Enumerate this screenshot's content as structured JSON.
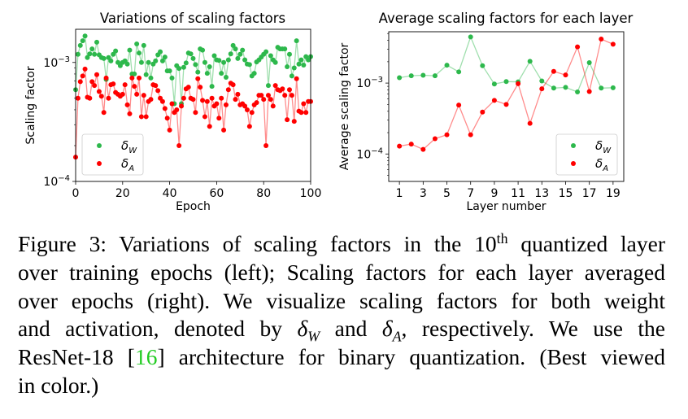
{
  "colors": {
    "delta_w": "#2db84c",
    "delta_a": "#ff0000",
    "citation": "#22cc22"
  },
  "chart_data": [
    {
      "type": "line",
      "title": "Variations of scaling factors",
      "xlabel": "Epoch",
      "ylabel": "Scaling factor",
      "yscale": "log",
      "xlim": [
        0,
        100
      ],
      "ylim": [
        0.0001,
        0.0019
      ],
      "xticks": [
        0,
        20,
        40,
        60,
        80,
        100
      ],
      "yticks": [
        {
          "value": 0.001,
          "base": "10",
          "exp": "−3"
        },
        {
          "value": 0.0001,
          "base": "10",
          "exp": "−4"
        }
      ],
      "grid": false,
      "legend_position": "lower-left",
      "x": [
        0,
        1,
        2,
        3,
        4,
        5,
        6,
        7,
        8,
        9,
        10,
        11,
        12,
        13,
        14,
        15,
        16,
        17,
        18,
        19,
        20,
        21,
        22,
        23,
        24,
        25,
        26,
        27,
        28,
        29,
        30,
        31,
        32,
        33,
        34,
        35,
        36,
        37,
        38,
        39,
        40,
        41,
        42,
        43,
        44,
        45,
        46,
        47,
        48,
        49,
        50,
        51,
        52,
        53,
        54,
        55,
        56,
        57,
        58,
        59,
        60,
        61,
        62,
        63,
        64,
        65,
        66,
        67,
        68,
        69,
        70,
        71,
        72,
        73,
        74,
        75,
        76,
        77,
        78,
        79,
        80,
        81,
        82,
        83,
        84,
        85,
        86,
        87,
        88,
        89,
        90,
        91,
        92,
        93,
        94,
        95,
        96,
        97,
        98,
        99,
        100
      ],
      "series": [
        {
          "name": "δW",
          "name_base": "δ",
          "name_sub": "W",
          "color_key": "delta_w",
          "values_e3": [
            0.59,
            1.17,
            1.39,
            1.52,
            1.67,
            1.1,
            1.18,
            1.3,
            1.17,
            1.48,
            1.16,
            1.1,
            1.08,
            0.72,
            1.1,
            1.03,
            1.17,
            1.25,
            1.0,
            0.94,
            1.0,
            1.03,
            0.97,
            1.27,
            0.8,
            0.8,
            1.43,
            1.2,
            1.0,
            1.39,
            0.79,
            1.0,
            0.74,
            0.97,
            1.03,
            1.16,
            1.23,
            1.03,
            1.11,
            0.85,
            0.85,
            0.74,
            0.45,
            0.94,
            0.89,
            0.45,
            0.91,
            0.99,
            1.2,
            1.18,
            1.08,
            0.96,
            0.83,
            1.3,
            1.27,
            1.0,
            0.81,
            0.92,
            0.63,
            1.14,
            1.05,
            1.04,
            0.81,
            1.0,
            0.75,
            1.05,
            1.18,
            1.39,
            1.3,
            1.08,
            1.17,
            1.27,
            1.05,
            0.97,
            0.96,
            0.77,
            0.81,
            1.01,
            1.05,
            1.11,
            1.17,
            1.23,
            0.64,
            1.14,
            1.05,
            1.0,
            1.34,
            1.3,
            1.3,
            1.3,
            0.92,
            1.17,
            0.77,
            0.9,
            1.52,
            0.97,
            1.05,
            0.95,
            1.12,
            1.05,
            1.12
          ]
        },
        {
          "name": "δA",
          "name_base": "δ",
          "name_sub": "A",
          "color_key": "delta_a",
          "values_e3": [
            0.16,
            0.5,
            0.69,
            0.77,
            0.88,
            0.51,
            0.5,
            0.69,
            0.64,
            0.79,
            0.57,
            0.52,
            0.38,
            0.74,
            0.5,
            0.65,
            0.66,
            0.56,
            0.54,
            0.52,
            0.54,
            0.65,
            0.44,
            0.37,
            0.74,
            0.63,
            0.54,
            0.74,
            0.35,
            0.53,
            0.35,
            0.47,
            0.49,
            0.65,
            0.64,
            0.58,
            0.5,
            0.47,
            0.41,
            0.34,
            0.27,
            0.45,
            0.38,
            0.4,
            0.2,
            0.43,
            0.5,
            0.6,
            0.62,
            0.5,
            0.49,
            0.38,
            0.73,
            0.62,
            0.48,
            0.35,
            0.47,
            0.29,
            0.5,
            0.43,
            0.45,
            0.34,
            0.5,
            0.27,
            0.44,
            0.59,
            0.67,
            0.65,
            0.49,
            0.54,
            0.44,
            0.45,
            0.43,
            0.4,
            0.29,
            0.38,
            0.44,
            0.46,
            0.53,
            0.53,
            0.49,
            0.2,
            0.53,
            0.49,
            0.43,
            0.64,
            0.59,
            0.58,
            0.6,
            0.53,
            0.33,
            0.59,
            0.53,
            0.32,
            0.73,
            0.39,
            0.38,
            0.45,
            0.38,
            0.47,
            0.47
          ]
        }
      ]
    },
    {
      "type": "line",
      "title": "Average scaling factors for each layer",
      "xlabel": "Layer number",
      "ylabel": "Average scaling factor",
      "yscale": "log",
      "xlim": [
        0.1,
        19.9
      ],
      "ylim": [
        4.1e-05,
        0.0053
      ],
      "xticks": [
        1,
        3,
        5,
        7,
        9,
        11,
        13,
        15,
        17,
        19
      ],
      "yticks": [
        {
          "value": 0.001,
          "base": "10",
          "exp": "−3"
        },
        {
          "value": 0.0001,
          "base": "10",
          "exp": "−4"
        }
      ],
      "grid": false,
      "legend_position": "lower-right",
      "x": [
        1,
        2,
        3,
        4,
        5,
        6,
        7,
        8,
        9,
        10,
        11,
        12,
        13,
        14,
        15,
        16,
        17,
        18,
        19
      ],
      "series": [
        {
          "name": "δW",
          "name_base": "δ",
          "name_sub": "W",
          "color_key": "delta_w",
          "values_e3": [
            1.19,
            1.27,
            1.29,
            1.27,
            1.79,
            1.44,
            4.48,
            1.76,
            0.97,
            1.05,
            1.04,
            2.03,
            1.07,
            0.85,
            0.87,
            0.75,
            1.94,
            0.85,
            0.86
          ]
        },
        {
          "name": "δA",
          "name_base": "δ",
          "name_sub": "A",
          "color_key": "delta_a",
          "values_e3": [
            0.129,
            0.138,
            0.116,
            0.164,
            0.187,
            0.49,
            0.187,
            0.39,
            0.57,
            0.5,
            0.98,
            0.27,
            0.83,
            1.46,
            1.3,
            3.24,
            0.76,
            4.18,
            3.53
          ]
        }
      ]
    }
  ],
  "caption": {
    "l1a": "Figure 3: Variations of scaling factors in the 10",
    "l1sup": "th",
    "l1b": " quantized layer",
    "l2": "over training epochs (left); Scaling factors for each layer averaged",
    "l3": "over epochs (right). We visualize scaling factors for both weight",
    "l4a": "and activation, denoted by ",
    "delta": "δ",
    "w": "W",
    "and": " and ",
    "a": "A",
    "l4b": ", respectively. We use the",
    "l5a": "ResNet-18 [",
    "cite": "16",
    "l5b": "] architecture for binary quantization. (Best viewed",
    "l6": "in color.)"
  }
}
